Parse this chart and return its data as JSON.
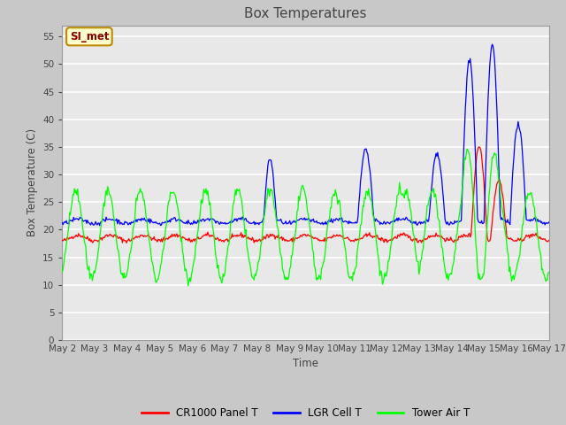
{
  "title": "Box Temperatures",
  "xlabel": "Time",
  "ylabel": "Box Temperature (C)",
  "ylim": [
    0,
    57
  ],
  "yticks": [
    0,
    5,
    10,
    15,
    20,
    25,
    30,
    35,
    40,
    45,
    50,
    55
  ],
  "fig_bg_color": "#c8c8c8",
  "plot_bg_color": "#e8e8e8",
  "grid_color": "white",
  "annotation_label": "SI_met",
  "annotation_bg": "#ffffcc",
  "annotation_border": "#bb8800",
  "legend_entries": [
    "CR1000 Panel T",
    "LGR Cell T",
    "Tower Air T"
  ],
  "legend_colors": [
    "red",
    "blue",
    "lime"
  ],
  "line_colors": [
    "red",
    "blue",
    "lime"
  ],
  "xtick_labels": [
    "May 2",
    "May 3",
    "May 4",
    "May 5",
    "May 6",
    "May 7",
    "May 8",
    "May 9",
    "May 10",
    "May 11",
    "May 12",
    "May 13",
    "May 14",
    "May 15",
    "May 16",
    "May 17"
  ]
}
